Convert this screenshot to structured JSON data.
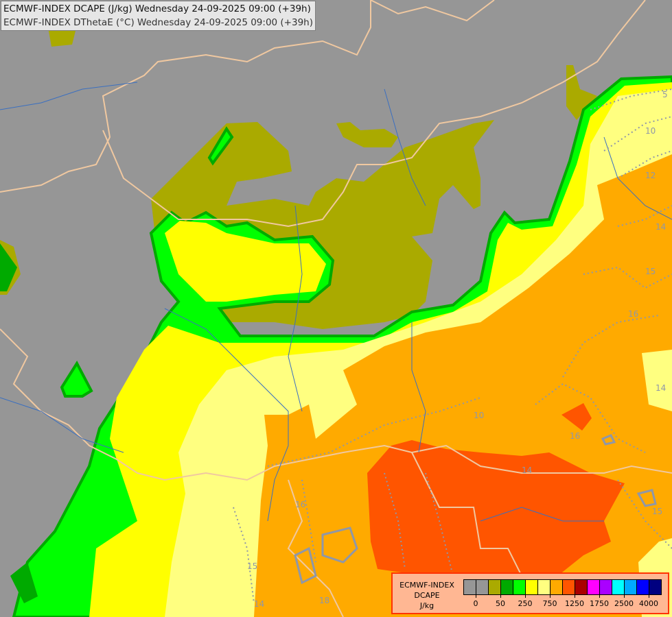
{
  "title": {
    "line1": "ECMWF-INDEX DCAPE (J/kg) Wednesday 24-09-2025 09:00 (+39h)",
    "line2": "ECMWF-INDEX DThetaE (°C) Wednesday 24-09-2025 09:00 (+39h)"
  },
  "legend": {
    "title_line1": "ECMWF-INDEX",
    "title_line2": "DCAPE",
    "unit": "J/kg",
    "colors": [
      "#969696",
      "#969696",
      "#aaaa00",
      "#00aa00",
      "#00ff00",
      "#ffff00",
      "#ffff80",
      "#ffaa00",
      "#ff5500",
      "#aa0000",
      "#ff00ff",
      "#aa00ff",
      "#00ffff",
      "#00aaff",
      "#0000ff",
      "#000080"
    ],
    "tick_labels": [
      "0",
      "50",
      "250",
      "750",
      "1250",
      "1750",
      "2500",
      "4000"
    ]
  },
  "colors": {
    "background": "#969696",
    "olive": "#aaaa00",
    "dark_green": "#00aa00",
    "green": "#00ff00",
    "yellow": "#ffff00",
    "light_yellow": "#ffff80",
    "orange": "#ffaa00",
    "red_orange": "#ff5500",
    "borders": "#f0c8a0",
    "rivers": "#3a6fc0",
    "dthetae_contours": "#8f97a8"
  },
  "contour_labels": [
    "5",
    "10",
    "12",
    "14",
    "15",
    "16",
    "10",
    "16",
    "14",
    "14",
    "16",
    "15",
    "14",
    "18",
    "15"
  ]
}
